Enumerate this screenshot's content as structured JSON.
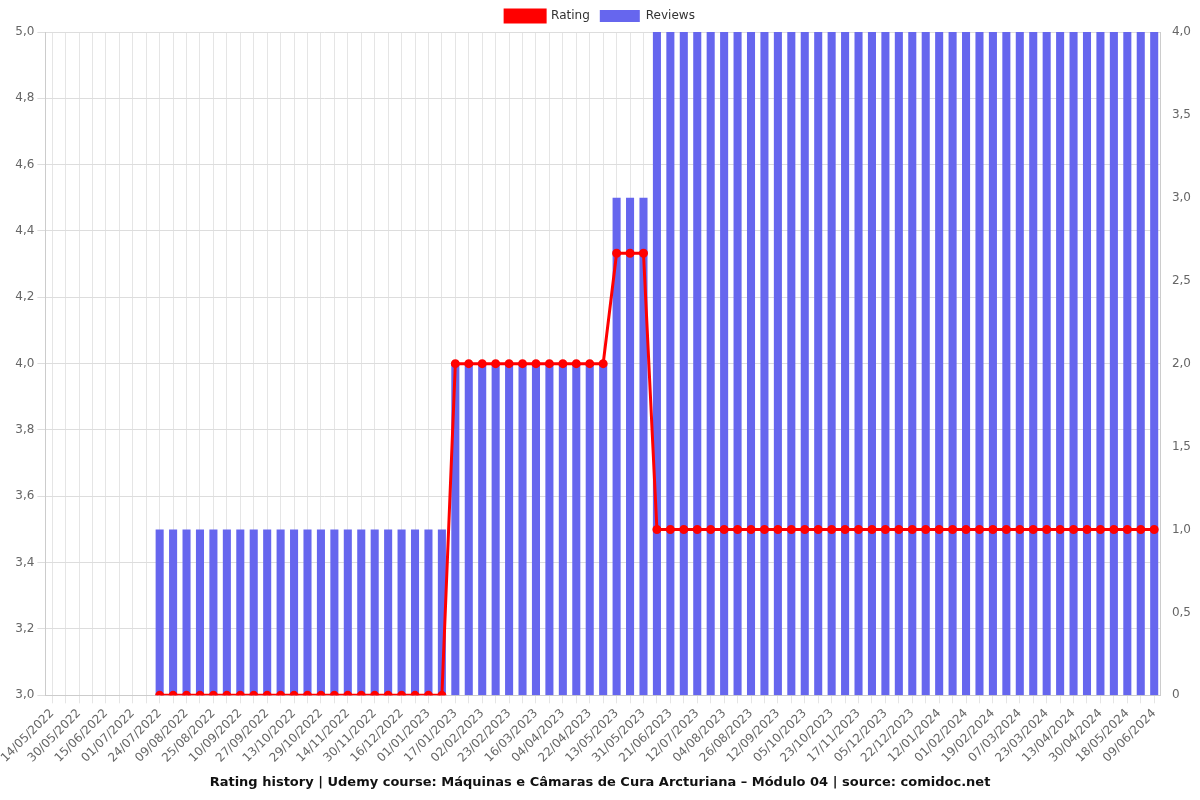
{
  "chart_data": {
    "type": "bar",
    "title": "Rating history | Udemy course: Máquinas e Câmaras de Cura Arcturiana – Módulo 04 | source: comidoc.net",
    "categories": [
      "14/05/2022",
      null,
      "30/05/2022",
      null,
      "15/06/2022",
      null,
      "01/07/2022",
      null,
      "24/07/2022",
      null,
      "09/08/2022",
      null,
      "25/08/2022",
      null,
      "10/09/2022",
      null,
      "27/09/2022",
      null,
      "13/10/2022",
      null,
      "29/10/2022",
      null,
      "14/11/2022",
      null,
      "30/11/2022",
      null,
      "16/12/2022",
      null,
      "01/01/2023",
      null,
      "17/01/2023",
      null,
      "02/02/2023",
      null,
      "23/02/2023",
      null,
      "16/03/2023",
      null,
      "04/04/2023",
      null,
      "22/04/2023",
      null,
      "13/05/2023",
      null,
      "31/05/2023",
      null,
      "21/06/2023",
      null,
      "12/07/2023",
      null,
      "04/08/2023",
      null,
      "26/08/2023",
      null,
      "12/09/2023",
      null,
      "05/10/2023",
      null,
      "23/10/2023",
      null,
      "17/11/2023",
      null,
      "05/12/2023",
      null,
      "22/12/2023",
      null,
      "12/01/2024",
      null,
      "01/02/2024",
      null,
      "19/02/2024",
      null,
      "07/03/2024",
      null,
      "23/03/2024",
      null,
      "13/04/2024",
      null,
      "30/04/2024",
      null,
      "18/05/2024",
      null,
      "09/06/2024"
    ],
    "series": [
      {
        "name": "Rating",
        "type": "line",
        "color": "#ff0000",
        "marker": "circle",
        "axis": "y",
        "values": [
          null,
          null,
          null,
          null,
          null,
          null,
          null,
          null,
          3,
          3,
          3,
          3,
          3,
          3,
          3,
          3,
          3,
          3,
          3,
          3,
          3,
          3,
          3,
          3,
          3,
          3,
          3,
          3,
          3,
          3,
          4,
          4,
          4,
          4,
          4,
          4,
          4,
          4,
          4,
          4,
          4,
          4,
          4.333,
          4.333,
          4.333,
          3.5,
          3.5,
          3.5,
          3.5,
          3.5,
          3.5,
          3.5,
          3.5,
          3.5,
          3.5,
          3.5,
          3.5,
          3.5,
          3.5,
          3.5,
          3.5,
          3.5,
          3.5,
          3.5,
          3.5,
          3.5,
          3.5,
          3.5,
          3.5,
          3.5,
          3.5,
          3.5,
          3.5,
          3.5,
          3.5,
          3.5,
          3.5,
          3.5,
          3.5,
          3.5,
          3.5,
          3.5,
          3.5
        ]
      },
      {
        "name": "Reviews",
        "type": "bar",
        "color": "#6666ee",
        "axis": "y2",
        "values": [
          null,
          null,
          null,
          null,
          null,
          null,
          null,
          null,
          1,
          1,
          1,
          1,
          1,
          1,
          1,
          1,
          1,
          1,
          1,
          1,
          1,
          1,
          1,
          1,
          1,
          1,
          1,
          1,
          1,
          1,
          2,
          2,
          2,
          2,
          2,
          2,
          2,
          2,
          2,
          2,
          2,
          2,
          3,
          3,
          3,
          4,
          4,
          4,
          4,
          4,
          4,
          4,
          4,
          4,
          4,
          4,
          4,
          4,
          4,
          4,
          4,
          4,
          4,
          4,
          4,
          4,
          4,
          4,
          4,
          4,
          4,
          4,
          4,
          4,
          4,
          4,
          4,
          4,
          4,
          4,
          4,
          4,
          4
        ]
      }
    ],
    "ylim": [
      3,
      5
    ],
    "yticks": [
      {
        "value": 3,
        "label": "3,0"
      },
      {
        "value": 3.2,
        "label": "3,2"
      },
      {
        "value": 3.4,
        "label": "3,4"
      },
      {
        "value": 3.6,
        "label": "3,6"
      },
      {
        "value": 3.8,
        "label": "3,8"
      },
      {
        "value": 4,
        "label": "4,0"
      },
      {
        "value": 4.2,
        "label": "4,2"
      },
      {
        "value": 4.4,
        "label": "4,4"
      },
      {
        "value": 4.6,
        "label": "4,6"
      },
      {
        "value": 4.8,
        "label": "4,8"
      },
      {
        "value": 5,
        "label": "5,0"
      }
    ],
    "y2lim": [
      0,
      4
    ],
    "y2ticks": [
      0,
      {
        "value": 0.5,
        "label": "0,5"
      },
      {
        "value": 1,
        "label": "1,0"
      },
      {
        "value": 1.5,
        "label": "1,5"
      },
      {
        "value": 2,
        "label": "2,0"
      },
      {
        "value": 2.5,
        "label": "2,5"
      },
      {
        "value": 3,
        "label": "3,0"
      },
      {
        "value": 3.5,
        "label": "3,5"
      },
      {
        "value": 4,
        "label": "4,0"
      }
    ],
    "grid": true,
    "legend": "top"
  }
}
